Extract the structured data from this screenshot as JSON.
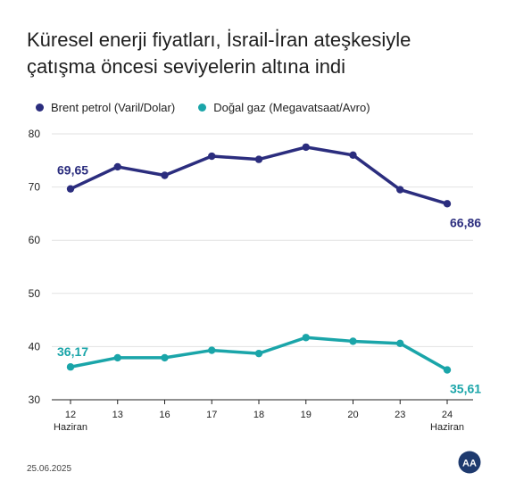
{
  "title_line1": "Küresel enerji fiyatları, İsrail-İran ateşkesiyle",
  "title_line2": "çatışma öncesi seviyelerin altına indi",
  "date": "25.06.2025",
  "logo_text": "AA",
  "colors": {
    "brent": "#2b2d7e",
    "gas": "#1aa5a9",
    "grid": "#e2e2e2",
    "axis": "#222222"
  },
  "chart_data": {
    "type": "line",
    "categories": [
      "12",
      "13",
      "16",
      "17",
      "18",
      "19",
      "20",
      "23",
      "24"
    ],
    "category_sublabels": [
      "Haziran",
      "",
      "",
      "",
      "",
      "",
      "",
      "",
      "Haziran"
    ],
    "ylim": [
      30,
      80
    ],
    "yticks": [
      "30",
      "40",
      "50",
      "60",
      "70",
      "80"
    ],
    "grid": true,
    "legend_position": "top-left",
    "series": [
      {
        "name": "Brent petrol (Varil/Dolar)",
        "values": [
          69.65,
          73.8,
          72.2,
          75.8,
          75.2,
          77.5,
          76.0,
          69.5,
          66.86
        ],
        "labels": [
          {
            "index": 0,
            "text": "69,65"
          },
          {
            "index": 8,
            "text": "66,86"
          }
        ]
      },
      {
        "name": "Doğal gaz (Megavatsaat/Avro)",
        "values": [
          36.17,
          37.9,
          37.9,
          39.3,
          38.7,
          41.7,
          41.0,
          40.6,
          35.61
        ],
        "labels": [
          {
            "index": 0,
            "text": "36,17"
          },
          {
            "index": 8,
            "text": "35,61"
          }
        ]
      }
    ]
  }
}
